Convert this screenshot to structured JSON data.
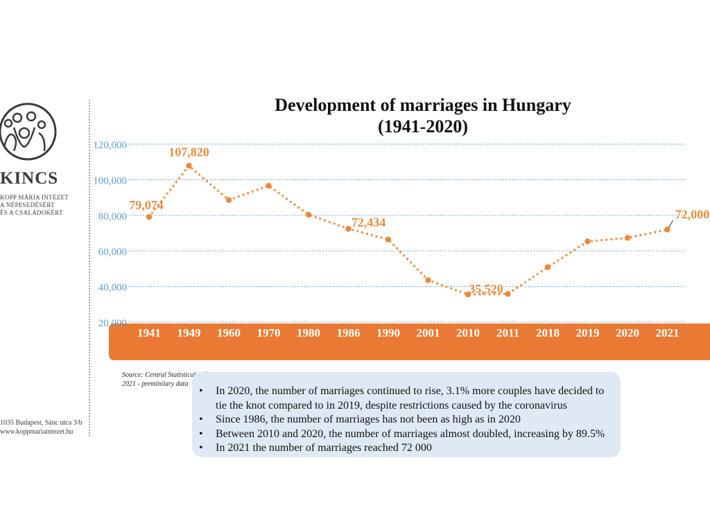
{
  "logo": {
    "name": "KINCS",
    "subtitle_lines": [
      "Kopp Mária Intézet",
      "a Népesedésért",
      "és a Családokért"
    ]
  },
  "address_lines": [
    "1035 Budapest, Sánc utca 3/b",
    "www.koppmariaintezet.hu"
  ],
  "source_lines": [
    "Source: Central Statistical Office",
    "2021 - preminilary data"
  ],
  "bullets": [
    "In 2020, the number of marriages continued to rise, 3.1% more couples have decided to tie the knot compared to in 2019, despite restrictions caused by the coronavirus",
    "Since 1986, the number of marriages has not been as high as in 2020",
    "Between 2010 and 2020, the number of marriages almost doubled, increasing by 89.5%",
    "In 2021 the number of marriages reached 72 000"
  ],
  "colors": {
    "series": "#ea8a3d",
    "axis_band": "#ea7a33",
    "grid": "#5b9bd5",
    "tick_text": "#5b9bd5",
    "bullet_box": "#dfe9f4"
  },
  "chart_data": {
    "type": "line",
    "title": "Development of marriages in Hungary (1941-2020)",
    "title_lines": [
      "Development of marriages in Hungary",
      "(1941-2020)"
    ],
    "categories": [
      "1941",
      "1949",
      "1960",
      "1970",
      "1980",
      "1986",
      "1990",
      "2001",
      "2010",
      "2011",
      "2018",
      "2019",
      "2020",
      "2021"
    ],
    "series": [
      {
        "values": [
          79074,
          107820,
          88566,
          96612,
          80331,
          72434,
          66405,
          43583,
          35520,
          35812,
          50828,
          65331,
          67301,
          72000
        ]
      }
    ],
    "data_labels": [
      {
        "index": 0,
        "text": "79,074"
      },
      {
        "index": 1,
        "text": "107,820"
      },
      {
        "index": 5,
        "text": "72,434"
      },
      {
        "index": 8,
        "text": "35,520"
      },
      {
        "index": 13,
        "text": "72,000"
      }
    ],
    "y_ticks": [
      20000,
      40000,
      60000,
      80000,
      100000,
      120000
    ],
    "y_tick_labels": [
      "20,000",
      "40,000",
      "60,000",
      "80,000",
      "100,000",
      "120,000"
    ],
    "ylim": [
      20000,
      120000
    ],
    "grid": true,
    "legend": "none",
    "line_style": "dotted"
  }
}
